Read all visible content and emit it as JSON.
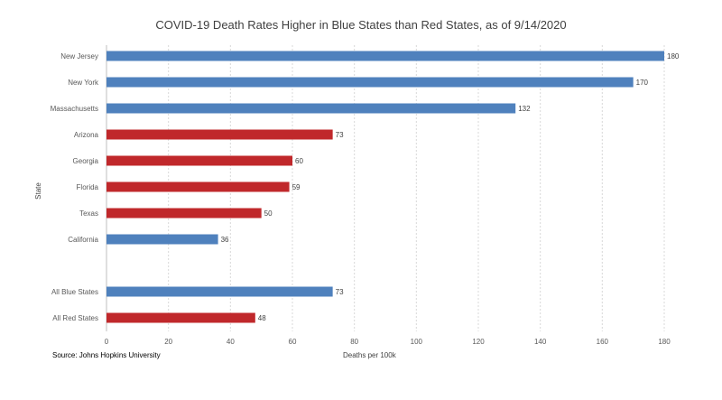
{
  "chart_data": {
    "type": "bar",
    "orientation": "horizontal",
    "title": "COVID-19 Death Rates Higher in Blue States than Red States, as of 9/14/2020",
    "xlabel": "Deaths per 100k",
    "ylabel": "State",
    "xlim": [
      0,
      180
    ],
    "xticks": [
      0,
      20,
      40,
      60,
      80,
      100,
      120,
      140,
      160,
      180
    ],
    "grid": "vertical",
    "categories": [
      "New Jersey",
      "New York",
      "Massachusetts",
      "Arizona",
      "Georgia",
      "Florida",
      "Texas",
      "California",
      "",
      "All Blue States",
      "All Red States"
    ],
    "values": [
      180,
      170,
      132,
      73,
      60,
      59,
      50,
      36,
      null,
      73,
      48
    ],
    "bar_party": [
      "blue",
      "blue",
      "blue",
      "red",
      "red",
      "red",
      "red",
      "blue",
      null,
      "blue",
      "red"
    ],
    "colors": {
      "blue": "#4f81bd",
      "red": "#c0282b",
      "grid": "#d9d9d9",
      "axis": "#bfbfbf"
    },
    "source": "Source: Johns Hopkins University"
  }
}
